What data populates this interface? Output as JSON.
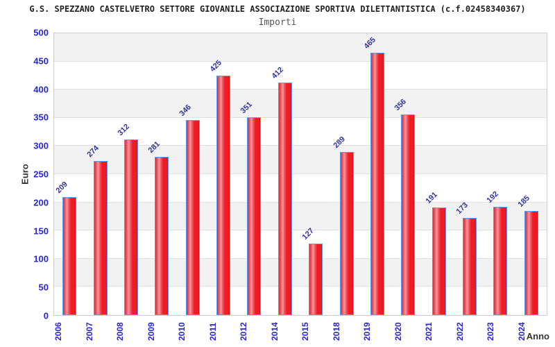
{
  "title": "G.S. SPEZZANO CASTELVETRO SETTORE GIOVANILE ASSOCIAZIONE SPORTIVA DILETTANTISTICA (c.f.02458340367)",
  "subtitle": "Importi",
  "chart_data": {
    "type": "bar",
    "title": "Importi",
    "categories": [
      "2006",
      "2007",
      "2008",
      "2009",
      "2010",
      "2011",
      "2012",
      "2014",
      "2015",
      "2018",
      "2019",
      "2020",
      "2021",
      "2022",
      "2023",
      "2024"
    ],
    "values": [
      209,
      274,
      312,
      281,
      346,
      425,
      351,
      412,
      127,
      289,
      465,
      356,
      191,
      173,
      192,
      185
    ],
    "xlabel": "Anno",
    "ylabel": "Euro",
    "ylim": [
      0,
      500
    ],
    "yticks": [
      0,
      50,
      100,
      150,
      200,
      250,
      300,
      350,
      400,
      450,
      500
    ],
    "grid": true,
    "legend": false,
    "band_pattern": "alternating gray/white horizontal bands, gray from 450-500, 350-400, 250-300, 150-200, 50-100"
  },
  "colors": {
    "title_color": "#222222",
    "subtitle_color": "#555555",
    "tick_label": "#2626d8",
    "value_label": "#333399",
    "axis_title": "#333333",
    "band_gray": "#f2f2f2",
    "grid_line": "#e0e0e0",
    "bar_fill": "#ee1c25",
    "bar_highlight": "#f6999e",
    "bar_border": "#4d9fff"
  }
}
